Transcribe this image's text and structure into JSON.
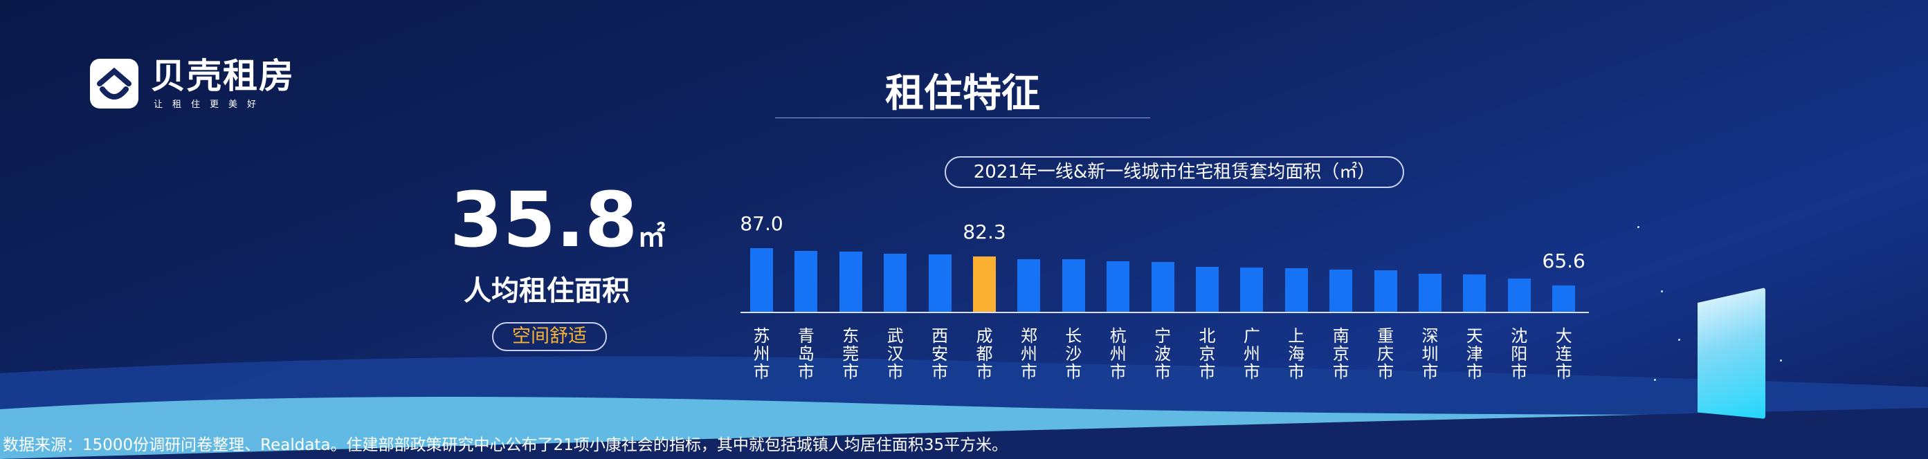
{
  "logo": {
    "name": "贝壳租房",
    "slogan": "让租住更美好"
  },
  "title": "租住特征",
  "highlight": {
    "value": "35.8",
    "unit": "㎡",
    "label": "人均租住面积",
    "tag": "空间舒适"
  },
  "colors": {
    "bar": "#1673f5",
    "highlight_bar": "#fbb034",
    "tag": "#f9b233"
  },
  "chart_data": {
    "type": "bar",
    "title": "2021年一线&新一线城市住宅租赁套均面积（㎡）",
    "categories": [
      "苏州市",
      "青岛市",
      "东莞市",
      "武汉市",
      "西安市",
      "成都市",
      "郑州市",
      "长沙市",
      "杭州市",
      "宁波市",
      "北京市",
      "广州市",
      "上海市",
      "南京市",
      "重庆市",
      "深圳市",
      "天津市",
      "沈阳市",
      "大连市"
    ],
    "values": [
      87.0,
      85.3,
      84.9,
      83.8,
      83.4,
      82.3,
      80.6,
      80.6,
      79.4,
      79.0,
      76.3,
      75.9,
      75.5,
      74.7,
      74.3,
      72.3,
      71.9,
      69.5,
      65.6
    ],
    "data_labels": {
      "0": "87.0",
      "5": "82.3",
      "18": "65.6"
    },
    "highlight_index": 5,
    "ylim": [
      50.7,
      90
    ],
    "grid": false,
    "legend": "none"
  },
  "footer": "数据来源：15000份调研问卷整理、Realdata。住建部部政策研究中心公布了21项小康社会的指标，其中就包括城镇人均居住面积35平方米。"
}
